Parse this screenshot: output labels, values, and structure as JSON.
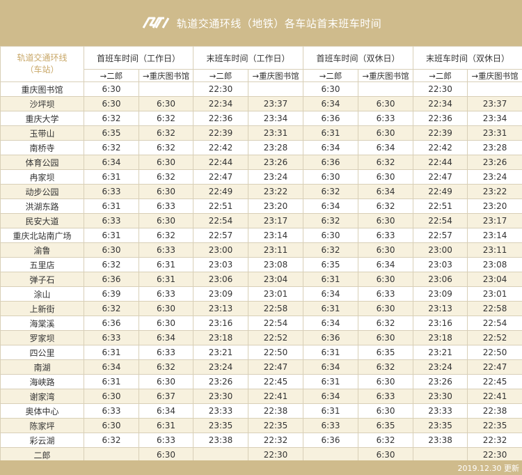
{
  "header": {
    "title": "轨道交通环线（地铁）各车站首末班车时间",
    "logo_icon": "rail-transit-logo-icon",
    "accent": "#cfbb8c"
  },
  "table": {
    "corner_label": "轨道交通环线",
    "corner_sub": "（车站）",
    "groups": [
      "首班车时间（工作日）",
      "末班车时间（工作日）",
      "首班车时间（双休日）",
      "末班车时间（双休日）"
    ],
    "directions": [
      "→二郎",
      "→重庆图书馆",
      "→二郎",
      "→重庆图书馆",
      "→二郎",
      "→重庆图书馆",
      "→二郎",
      "→重庆图书馆"
    ],
    "rows": [
      [
        "重庆图书馆",
        "6:30",
        "",
        "22:30",
        "",
        "6:30",
        "",
        "22:30",
        ""
      ],
      [
        "沙坪坝",
        "6:30",
        "6:30",
        "22:34",
        "23:37",
        "6:34",
        "6:30",
        "22:34",
        "23:37"
      ],
      [
        "重庆大学",
        "6:32",
        "6:32",
        "22:36",
        "23:34",
        "6:36",
        "6:33",
        "22:36",
        "23:34"
      ],
      [
        "玉带山",
        "6:35",
        "6:32",
        "22:39",
        "23:31",
        "6:31",
        "6:30",
        "22:39",
        "23:31"
      ],
      [
        "南桥寺",
        "6:32",
        "6:32",
        "22:42",
        "23:28",
        "6:34",
        "6:34",
        "22:42",
        "23:28"
      ],
      [
        "体育公园",
        "6:34",
        "6:30",
        "22:44",
        "23:26",
        "6:36",
        "6:32",
        "22:44",
        "23:26"
      ],
      [
        "冉家坝",
        "6:31",
        "6:32",
        "22:47",
        "23:24",
        "6:30",
        "6:30",
        "22:47",
        "23:24"
      ],
      [
        "动步公园",
        "6:33",
        "6:30",
        "22:49",
        "23:22",
        "6:32",
        "6:34",
        "22:49",
        "23:22"
      ],
      [
        "洪湖东路",
        "6:31",
        "6:33",
        "22:51",
        "23:20",
        "6:34",
        "6:32",
        "22:51",
        "23:20"
      ],
      [
        "民安大道",
        "6:33",
        "6:30",
        "22:54",
        "23:17",
        "6:32",
        "6:30",
        "22:54",
        "23:17"
      ],
      [
        "重庆北站南广场",
        "6:31",
        "6:32",
        "22:57",
        "23:14",
        "6:30",
        "6:33",
        "22:57",
        "23:14"
      ],
      [
        "渝鲁",
        "6:30",
        "6:33",
        "23:00",
        "23:11",
        "6:32",
        "6:30",
        "23:00",
        "23:11"
      ],
      [
        "五里店",
        "6:32",
        "6:31",
        "23:03",
        "23:08",
        "6:35",
        "6:34",
        "23:03",
        "23:08"
      ],
      [
        "弹子石",
        "6:36",
        "6:31",
        "23:06",
        "23:04",
        "6:31",
        "6:30",
        "23:06",
        "23:04"
      ],
      [
        "涂山",
        "6:39",
        "6:33",
        "23:09",
        "23:01",
        "6:34",
        "6:33",
        "23:09",
        "23:01"
      ],
      [
        "上新街",
        "6:32",
        "6:30",
        "23:13",
        "22:58",
        "6:31",
        "6:30",
        "23:13",
        "22:58"
      ],
      [
        "海棠溪",
        "6:36",
        "6:30",
        "23:16",
        "22:54",
        "6:34",
        "6:32",
        "23:16",
        "22:54"
      ],
      [
        "罗家坝",
        "6:33",
        "6:34",
        "23:18",
        "22:52",
        "6:36",
        "6:30",
        "23:18",
        "22:52"
      ],
      [
        "四公里",
        "6:31",
        "6:33",
        "23:21",
        "22:50",
        "6:31",
        "6:35",
        "23:21",
        "22:50"
      ],
      [
        "南湖",
        "6:34",
        "6:32",
        "23:24",
        "22:47",
        "6:34",
        "6:32",
        "23:24",
        "22:47"
      ],
      [
        "海峡路",
        "6:31",
        "6:30",
        "23:26",
        "22:45",
        "6:31",
        "6:30",
        "23:26",
        "22:45"
      ],
      [
        "谢家湾",
        "6:30",
        "6:37",
        "23:30",
        "22:41",
        "6:34",
        "6:33",
        "23:30",
        "22:41"
      ],
      [
        "奥体中心",
        "6:33",
        "6:34",
        "23:33",
        "22:38",
        "6:31",
        "6:30",
        "23:33",
        "22:38"
      ],
      [
        "陈家坪",
        "6:30",
        "6:31",
        "23:35",
        "22:35",
        "6:33",
        "6:35",
        "23:35",
        "22:35"
      ],
      [
        "彩云湖",
        "6:32",
        "6:33",
        "23:38",
        "22:32",
        "6:36",
        "6:32",
        "23:38",
        "22:32"
      ],
      [
        "二郎",
        "",
        "6:30",
        "",
        "22:30",
        "",
        "6:30",
        "",
        "22:30"
      ]
    ]
  },
  "footer": {
    "updated": "2019.12.30 更新"
  }
}
